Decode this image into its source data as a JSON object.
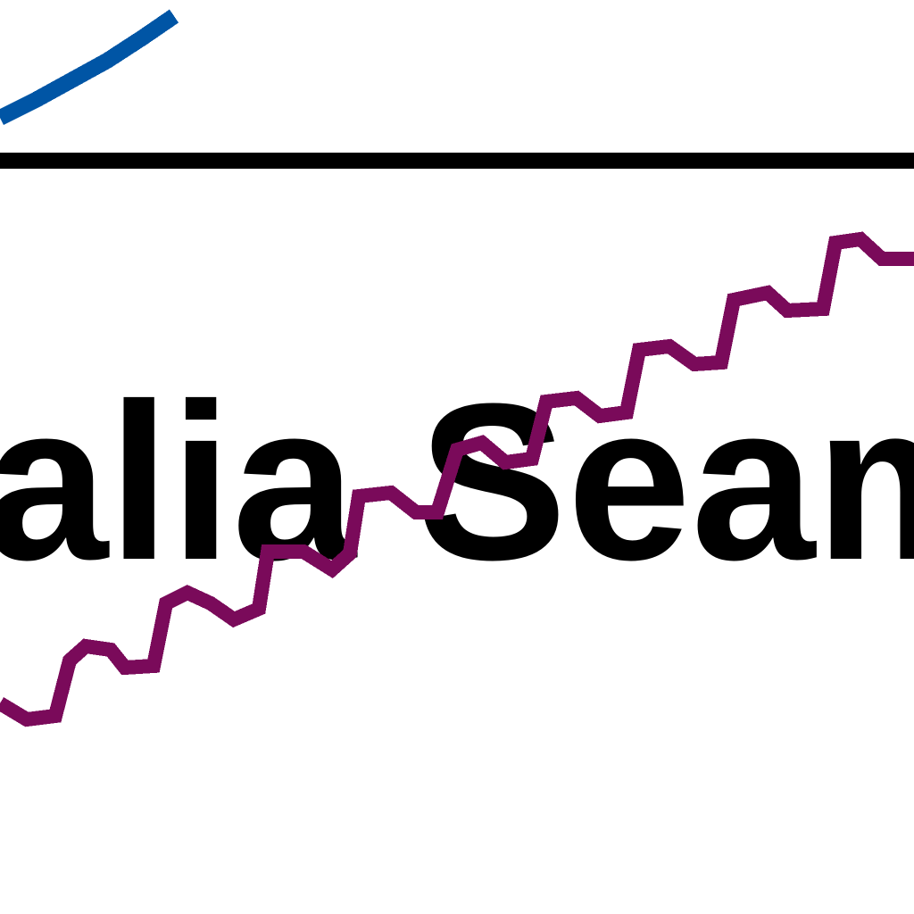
{
  "label": {
    "text": "alia Seam",
    "color": "#000000"
  },
  "lines": {
    "top_segment_color": "#0055a5",
    "divider_color": "#000000",
    "wave_color": "#7a0a5a"
  }
}
